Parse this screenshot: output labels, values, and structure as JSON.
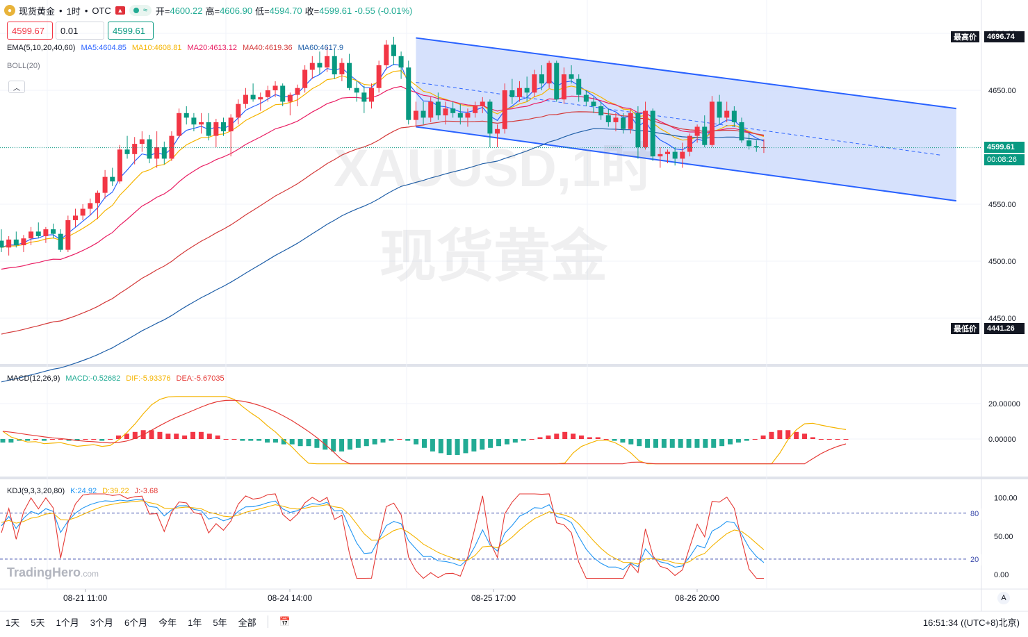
{
  "header": {
    "symbol": "现货黄金",
    "sep1": "•",
    "interval": "1时",
    "sep2": "•",
    "exchange": "OTC",
    "open_label": "开=",
    "open": "4600.22",
    "high_label": "高=",
    "high": "4606.90",
    "low_label": "低=",
    "low": "4594.70",
    "close_label": "收=",
    "close": "4599.61",
    "change": "-0.55 (-0.01%)"
  },
  "trade": {
    "sell_price": "4599.67",
    "quantity": "0.01",
    "buy_price": "4599.61"
  },
  "indicators": {
    "ema": {
      "label": "EMA(5,10,20,40,60)",
      "items": [
        {
          "text": "MA5:4604.85",
          "color": "#2962ff"
        },
        {
          "text": "MA10:4608.81",
          "color": "#f5b400"
        },
        {
          "text": "MA20:4613.12",
          "color": "#e91e63"
        },
        {
          "text": "MA40:4619.36",
          "color": "#d43a3a"
        },
        {
          "text": "MA60:4617.9",
          "color": "#1f5fa8"
        }
      ]
    },
    "boll": {
      "label": "BOLL(20)"
    },
    "macd": {
      "label": "MACD(12,26,9)",
      "items": [
        {
          "text": "MACD:-0.52682",
          "color": "#22ab94"
        },
        {
          "text": "DIF:-5.93376",
          "color": "#f5b400"
        },
        {
          "text": "DEA:-5.67035",
          "color": "#e53935"
        }
      ]
    },
    "kdj": {
      "label": "KDJ(9,3,3,20,80)",
      "items": [
        {
          "text": "K:24.92",
          "color": "#2196f3"
        },
        {
          "text": "D:39.22",
          "color": "#f5b400"
        },
        {
          "text": "J:-3.68",
          "color": "#e53935"
        }
      ]
    }
  },
  "watermark": {
    "line1": "XAUUSD,1时",
    "line2": "现货黄金"
  },
  "price_labels": {
    "high_tag": "最高价",
    "high_value": "4696.74",
    "low_tag": "最低价",
    "low_value": "4441.26",
    "current": "4599.61",
    "countdown": "00:08:26",
    "kdj_80": "80",
    "kdj_20": "20"
  },
  "brand": {
    "name": "TradingHero",
    "suffix": ".com"
  },
  "auto_button": "A",
  "bottom_bar": {
    "ranges": [
      "1天",
      "5天",
      "1个月",
      "3个月",
      "6个月",
      "今年",
      "1年",
      "5年",
      "全部"
    ],
    "clock": "16:51:34 ((UTC+8)北京)"
  },
  "colors": {
    "up": "#f23645",
    "down": "#089981",
    "channel_fill": "#cfdcfb",
    "channel_line": "#2962ff"
  },
  "chart_data": [
    {
      "type": "candlestick",
      "title": "XAUUSD,1时 现货黄金",
      "x_ticks": [
        "08-21 11:00",
        "08-24 14:00",
        "08-25 17:00",
        "08-26 20:00"
      ],
      "y_ticks": [
        4450.0,
        4500.0,
        4550.0,
        4600.0,
        4650.0,
        4700.0
      ],
      "ylim": [
        4420,
        4710
      ],
      "ohlc": [
        [
          4518,
          4528,
          4508,
          4512
        ],
        [
          4512,
          4522,
          4505,
          4519
        ],
        [
          4519,
          4526,
          4512,
          4514
        ],
        [
          4514,
          4523,
          4508,
          4520
        ],
        [
          4520,
          4530,
          4514,
          4526
        ],
        [
          4526,
          4534,
          4520,
          4522
        ],
        [
          4522,
          4530,
          4516,
          4528
        ],
        [
          4528,
          4533,
          4520,
          4524
        ],
        [
          4524,
          4528,
          4508,
          4510
        ],
        [
          4510,
          4540,
          4508,
          4536
        ],
        [
          4536,
          4546,
          4530,
          4540
        ],
        [
          4540,
          4550,
          4536,
          4546
        ],
        [
          4546,
          4555,
          4540,
          4551
        ],
        [
          4551,
          4562,
          4537,
          4560
        ],
        [
          4560,
          4580,
          4555,
          4574
        ],
        [
          4574,
          4582,
          4566,
          4570
        ],
        [
          4570,
          4602,
          4568,
          4598
        ],
        [
          4598,
          4610,
          4590,
          4594
        ],
        [
          4594,
          4609,
          4585,
          4603
        ],
        [
          4603,
          4614,
          4596,
          4607
        ],
        [
          4607,
          4611,
          4586,
          4590
        ],
        [
          4590,
          4614,
          4582,
          4600
        ],
        [
          4600,
          4605,
          4585,
          4590
        ],
        [
          4590,
          4614,
          4588,
          4610
        ],
        [
          4610,
          4634,
          4608,
          4630
        ],
        [
          4630,
          4636,
          4620,
          4626
        ],
        [
          4626,
          4630,
          4614,
          4620
        ],
        [
          4620,
          4630,
          4612,
          4622
        ],
        [
          4622,
          4630,
          4606,
          4610
        ],
        [
          4610,
          4625,
          4600,
          4622
        ],
        [
          4622,
          4626,
          4610,
          4614
        ],
        [
          4614,
          4629,
          4592,
          4626
        ],
        [
          4626,
          4642,
          4620,
          4638
        ],
        [
          4638,
          4652,
          4634,
          4646
        ],
        [
          4646,
          4656,
          4640,
          4642
        ],
        [
          4642,
          4648,
          4632,
          4644
        ],
        [
          4644,
          4654,
          4640,
          4650
        ],
        [
          4650,
          4658,
          4644,
          4654
        ],
        [
          4654,
          4656,
          4636,
          4640
        ],
        [
          4640,
          4648,
          4628,
          4646
        ],
        [
          4646,
          4655,
          4636,
          4652
        ],
        [
          4652,
          4672,
          4648,
          4668
        ],
        [
          4668,
          4680,
          4660,
          4674
        ],
        [
          4674,
          4684,
          4664,
          4670
        ],
        [
          4670,
          4688,
          4666,
          4680
        ],
        [
          4680,
          4686,
          4660,
          4664
        ],
        [
          4664,
          4678,
          4658,
          4674
        ],
        [
          4674,
          4682,
          4650,
          4652
        ],
        [
          4652,
          4658,
          4640,
          4648
        ],
        [
          4648,
          4654,
          4630,
          4640
        ],
        [
          4640,
          4656,
          4634,
          4652
        ],
        [
          4652,
          4676,
          4648,
          4672
        ],
        [
          4672,
          4694,
          4668,
          4690
        ],
        [
          4690,
          4697,
          4672,
          4680
        ],
        [
          4680,
          4684,
          4660,
          4670
        ],
        [
          4670,
          4676,
          4620,
          4624
        ],
        [
          4624,
          4640,
          4618,
          4632
        ],
        [
          4632,
          4640,
          4620,
          4626
        ],
        [
          4626,
          4644,
          4622,
          4640
        ],
        [
          4640,
          4648,
          4624,
          4628
        ],
        [
          4628,
          4640,
          4620,
          4634
        ],
        [
          4634,
          4640,
          4626,
          4630
        ],
        [
          4630,
          4638,
          4620,
          4626
        ],
        [
          4626,
          4634,
          4618,
          4630
        ],
        [
          4630,
          4640,
          4626,
          4636
        ],
        [
          4636,
          4644,
          4630,
          4640
        ],
        [
          4640,
          4642,
          4600,
          4612
        ],
        [
          4612,
          4620,
          4600,
          4616
        ],
        [
          4616,
          4656,
          4612,
          4650
        ],
        [
          4650,
          4660,
          4638,
          4644
        ],
        [
          4644,
          4658,
          4640,
          4652
        ],
        [
          4652,
          4662,
          4640,
          4648
        ],
        [
          4648,
          4668,
          4644,
          4664
        ],
        [
          4664,
          4672,
          4650,
          4656
        ],
        [
          4656,
          4676,
          4652,
          4674
        ],
        [
          4674,
          4676,
          4640,
          4642
        ],
        [
          4642,
          4670,
          4638,
          4664
        ],
        [
          4664,
          4672,
          4656,
          4660
        ],
        [
          4660,
          4664,
          4640,
          4646
        ],
        [
          4646,
          4650,
          4636,
          4640
        ],
        [
          4640,
          4644,
          4630,
          4636
        ],
        [
          4636,
          4640,
          4624,
          4628
        ],
        [
          4628,
          4634,
          4618,
          4622
        ],
        [
          4622,
          4630,
          4614,
          4626
        ],
        [
          4626,
          4630,
          4612,
          4616
        ],
        [
          4616,
          4634,
          4612,
          4630
        ],
        [
          4630,
          4636,
          4590,
          4600
        ],
        [
          4600,
          4640,
          4598,
          4632
        ],
        [
          4632,
          4634,
          4588,
          4592
        ],
        [
          4592,
          4600,
          4582,
          4594
        ],
        [
          4594,
          4598,
          4586,
          4596
        ],
        [
          4596,
          4600,
          4584,
          4590
        ],
        [
          4590,
          4604,
          4582,
          4596
        ],
        [
          4596,
          4612,
          4592,
          4610
        ],
        [
          4610,
          4620,
          4604,
          4618
        ],
        [
          4618,
          4628,
          4600,
          4602
        ],
        [
          4602,
          4645,
          4600,
          4640
        ],
        [
          4640,
          4646,
          4620,
          4626
        ],
        [
          4626,
          4640,
          4622,
          4632
        ],
        [
          4632,
          4636,
          4618,
          4622
        ],
        [
          4622,
          4626,
          4604,
          4606
        ],
        [
          4606,
          4612,
          4598,
          4601
        ],
        [
          4601,
          4606,
          4596,
          4600
        ],
        [
          4600,
          4607,
          4595,
          4600
        ]
      ],
      "ema_series": [
        {
          "name": "MA5",
          "values_note": "near close",
          "color": "#2962ff"
        },
        {
          "name": "MA10",
          "color": "#f5b400"
        },
        {
          "name": "MA20",
          "color": "#e91e63"
        },
        {
          "name": "MA40",
          "color": "#d43a3a"
        },
        {
          "name": "MA60",
          "color": "#1f5fa8"
        }
      ],
      "channel": {
        "upper": [
          [
            56,
            4696
          ],
          [
            129,
            4634
          ]
        ],
        "lower": [
          [
            56,
            4618
          ],
          [
            129,
            4553
          ]
        ],
        "mid": [
          [
            56,
            4657
          ],
          [
            127,
            4593
          ]
        ]
      },
      "current_price": 4599.61,
      "high": 4696.74,
      "low": 4441.26
    },
    {
      "type": "macd",
      "y_ticks": [
        20.0,
        0.0
      ],
      "ylim": [
        -15,
        27
      ],
      "histogram": [
        -2,
        -2,
        -1,
        -1,
        0,
        -1,
        0,
        0,
        -1,
        -1,
        0,
        0,
        -1,
        0,
        2,
        3,
        4,
        5,
        5,
        4,
        3,
        3,
        2,
        4,
        4,
        3,
        2,
        0,
        0,
        -1,
        -1,
        -1,
        -2,
        -2,
        -3,
        -3,
        -4,
        -4,
        -5,
        -6,
        -7,
        -7,
        -6,
        -5,
        -4,
        -3,
        -2,
        -1,
        0,
        -1,
        -3,
        -5,
        -7,
        -8,
        -9,
        -9,
        -8,
        -7,
        -6,
        -5,
        -4,
        -3,
        -2,
        -1,
        0,
        1,
        2,
        3,
        4,
        3,
        2,
        1,
        1,
        0,
        -1,
        -2,
        -3,
        -4,
        -5,
        -5,
        -5,
        -5,
        -5,
        -5,
        -5,
        -5,
        -5,
        -4,
        -3,
        -2,
        -1,
        0,
        2,
        4,
        5,
        5,
        4,
        3,
        1,
        0,
        0,
        0,
        0
      ],
      "dif_end": -5.93376,
      "dea_end": -5.67035
    },
    {
      "type": "kdj",
      "y_ticks": [
        100.0,
        50.0,
        0.0
      ],
      "levels": [
        80,
        20
      ],
      "ylim": [
        -10,
        110
      ],
      "k_end": 24.92,
      "d_end": 39.22,
      "j_end": -3.68
    }
  ]
}
